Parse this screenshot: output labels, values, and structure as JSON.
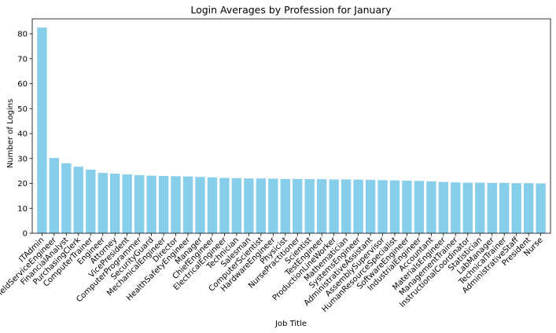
{
  "chart_data": {
    "type": "bar",
    "title": "Login Averages by Profession for January",
    "xlabel": "Job Title",
    "ylabel": "Number of Logins",
    "ylim": [
      0,
      86
    ],
    "yticks": [
      0,
      10,
      20,
      30,
      40,
      50,
      60,
      70,
      80
    ],
    "grid": false,
    "bar_color": "#87ceeb",
    "categories": [
      "ITAdmin",
      "FieldServiceEngineer",
      "FinancialAnalyst",
      "PurchasingClerk",
      "ComputerTrainer",
      "Engineer",
      "Attorney",
      "VicePresident",
      "ComputerProgrammer",
      "SecurityGuard",
      "MechanicalEngineer",
      "Director",
      "HealthSafetyEngineer",
      "Manager",
      "ChiefEngineer",
      "ElectricalEngineer",
      "Technician",
      "Salesman",
      "ComputerScientist",
      "HardwareEngineer",
      "Physicist",
      "NursePractitioner",
      "Scientist",
      "TestEngineer",
      "ProductionLineWorker",
      "Mathematician",
      "SystemsEngineer",
      "AdministrativeAssistant",
      "AssemblySupervisor",
      "HumanResourceSpecialist",
      "SoftwareEngineer",
      "IndustrialEngineer",
      "Accountant",
      "MaterialsEngineer",
      "ManagementTrainer",
      "InstructionalCoordinator",
      "Statistician",
      "LabManager",
      "TechnicalTrainer",
      "AdministrativeStaff",
      "President",
      "Nurse"
    ],
    "values": [
      82.5,
      30.2,
      28.1,
      26.7,
      25.5,
      24.2,
      23.9,
      23.6,
      23.3,
      23.1,
      23.0,
      22.9,
      22.8,
      22.6,
      22.4,
      22.2,
      22.1,
      22.0,
      22.0,
      21.9,
      21.8,
      21.8,
      21.7,
      21.7,
      21.6,
      21.6,
      21.5,
      21.4,
      21.3,
      21.2,
      21.1,
      21.0,
      20.8,
      20.6,
      20.4,
      20.3,
      20.3,
      20.2,
      20.2,
      20.1,
      20.1,
      20.0
    ]
  }
}
